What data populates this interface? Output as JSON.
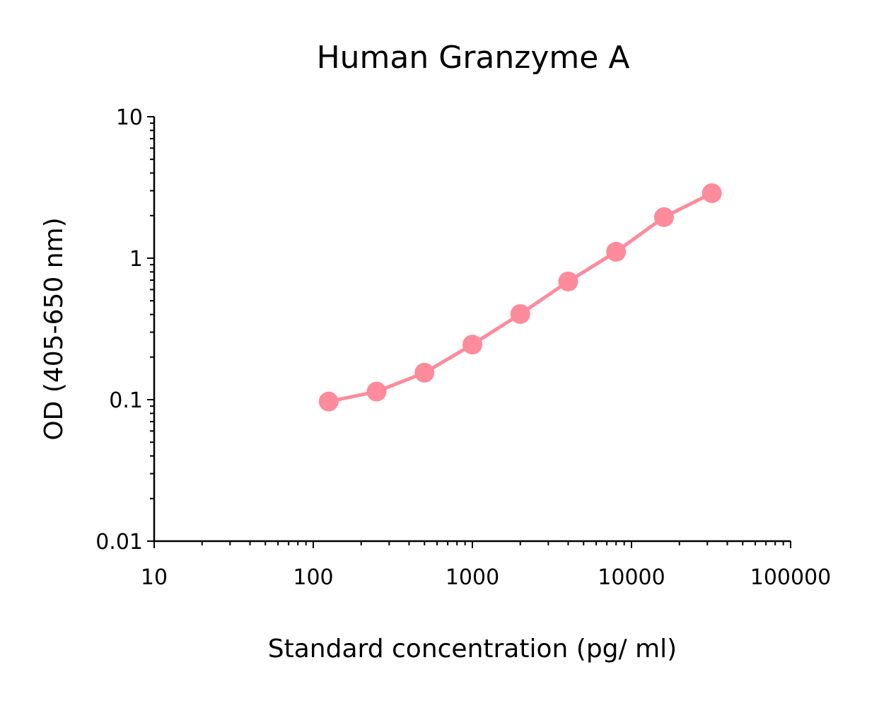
{
  "chart_data": {
    "type": "line",
    "title": "Human Granzyme A",
    "xlabel": "Standard concentration (pg/ ml)",
    "ylabel": "OD (405-650 nm)",
    "x_scale": "log",
    "y_scale": "log",
    "xlim": [
      10,
      100000
    ],
    "ylim": [
      0.01,
      10
    ],
    "x_ticks": [
      "10",
      "100",
      "1000",
      "10000",
      "100000"
    ],
    "y_ticks": [
      "0.01",
      "0.1",
      "1",
      "10"
    ],
    "grid": false,
    "color": "#fd8b9b",
    "series": [
      {
        "x": [
          125,
          250,
          500,
          1000,
          2000,
          4000,
          8000,
          16000,
          32000
        ],
        "y": [
          0.097,
          0.114,
          0.155,
          0.245,
          0.403,
          0.684,
          1.11,
          1.95,
          2.88
        ]
      }
    ]
  }
}
